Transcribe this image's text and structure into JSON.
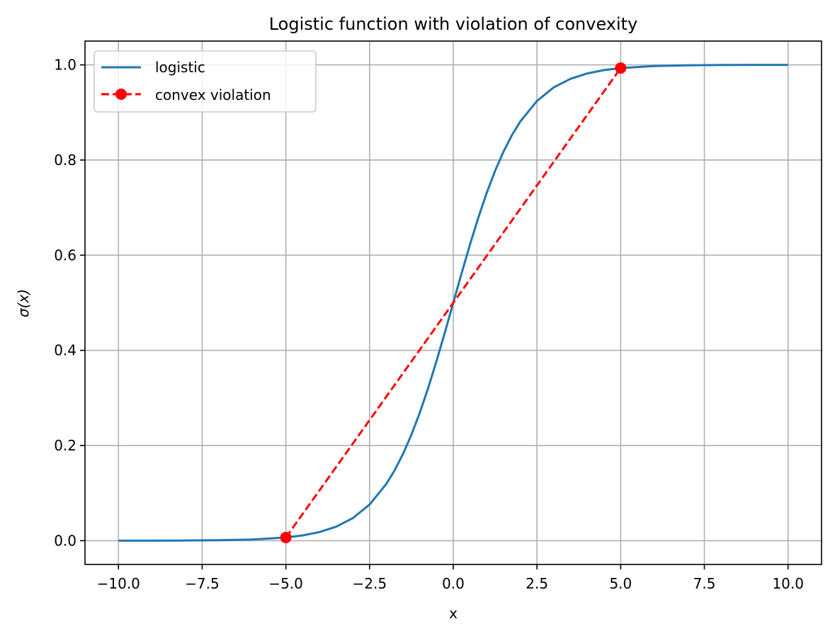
{
  "chart_data": {
    "type": "line",
    "title": "Logistic function with violation of convexity",
    "xlabel": "x",
    "ylabel": "σ(x)",
    "xlim": [
      -11,
      11
    ],
    "ylim": [
      -0.05,
      1.05
    ],
    "xticks": [
      -10.0,
      -7.5,
      -5.0,
      -2.5,
      0.0,
      2.5,
      5.0,
      7.5,
      10.0
    ],
    "xtick_labels": [
      "−10.0",
      "−7.5",
      "−5.0",
      "−2.5",
      "0.0",
      "2.5",
      "5.0",
      "7.5",
      "10.0"
    ],
    "yticks": [
      0.0,
      0.2,
      0.4,
      0.6,
      0.8,
      1.0
    ],
    "ytick_labels": [
      "0.0",
      "0.2",
      "0.4",
      "0.6",
      "0.8",
      "1.0"
    ],
    "grid": true,
    "legend_position": "top-left",
    "series": [
      {
        "name": "logistic",
        "color": "#1f77b4",
        "style": "solid",
        "x": [
          -10,
          -9,
          -8,
          -7,
          -6,
          -5,
          -4.5,
          -4,
          -3.5,
          -3,
          -2.5,
          -2,
          -1.75,
          -1.5,
          -1.25,
          -1,
          -0.75,
          -0.5,
          -0.25,
          0,
          0.25,
          0.5,
          0.75,
          1,
          1.25,
          1.5,
          1.75,
          2,
          2.5,
          3,
          3.5,
          4,
          4.5,
          5,
          6,
          7,
          8,
          9,
          10
        ],
        "y": [
          4.54e-05,
          0.0001234,
          0.0003354,
          0.000911,
          0.002473,
          0.006693,
          0.01099,
          0.01799,
          0.02931,
          0.04743,
          0.07586,
          0.1192,
          0.148,
          0.1824,
          0.2227,
          0.2689,
          0.3208,
          0.3775,
          0.4378,
          0.5,
          0.5622,
          0.6225,
          0.6792,
          0.7311,
          0.7773,
          0.8176,
          0.852,
          0.8808,
          0.9241,
          0.9526,
          0.9707,
          0.982,
          0.989,
          0.9933,
          0.9975,
          0.9991,
          0.9997,
          0.9999,
          1.0
        ]
      },
      {
        "name": "convex violation",
        "color": "#ff0000",
        "style": "dashed",
        "marker": "circle",
        "x": [
          -5,
          5
        ],
        "y": [
          0.006693,
          0.9933
        ]
      }
    ]
  }
}
